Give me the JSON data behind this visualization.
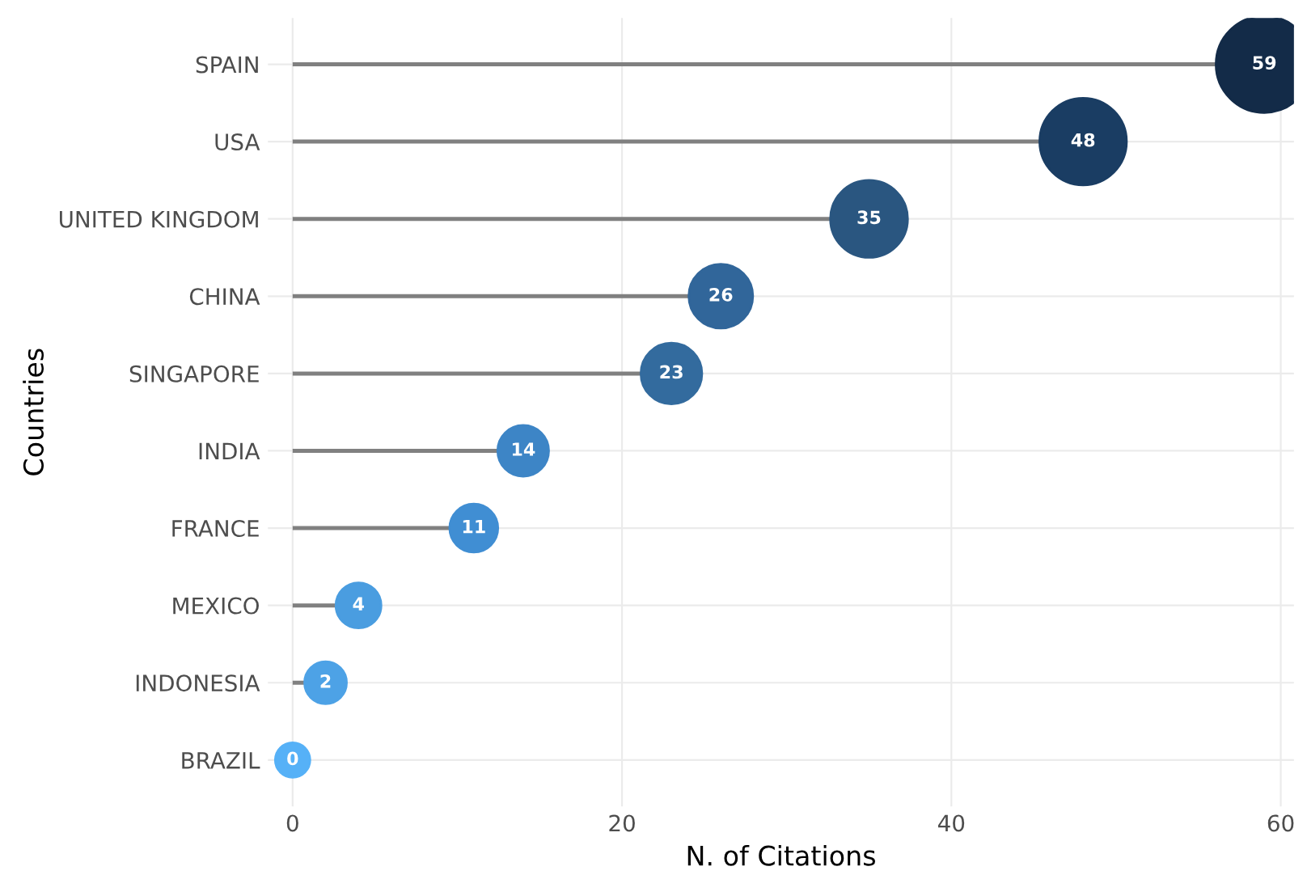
{
  "chart_data": {
    "type": "lollipop",
    "orientation": "horizontal",
    "xlabel": "N. of Citations",
    "ylabel": "Countries",
    "categories": [
      "SPAIN",
      "USA",
      "UNITED KINGDOM",
      "CHINA",
      "SINGAPORE",
      "INDIA",
      "FRANCE",
      "MEXICO",
      "INDONESIA",
      "BRAZIL"
    ],
    "values": [
      59,
      48,
      35,
      26,
      23,
      14,
      11,
      4,
      2,
      0
    ],
    "sizes": [
      1,
      0.81,
      0.64,
      0.44,
      0.4,
      0.28,
      0.25,
      0.22,
      0.19,
      0.13
    ],
    "colors": [
      "#132b48",
      "#1a3d63",
      "#2a5680",
      "#31669a",
      "#336b9e",
      "#3d85c6",
      "#408ed3",
      "#4a9de0",
      "#4da2e6",
      "#56b1f7"
    ],
    "xlim": [
      -1.5,
      60.8
    ],
    "xticks": [
      0,
      20,
      40,
      60
    ],
    "grid": true,
    "data_labels": true,
    "marker": "circle"
  }
}
